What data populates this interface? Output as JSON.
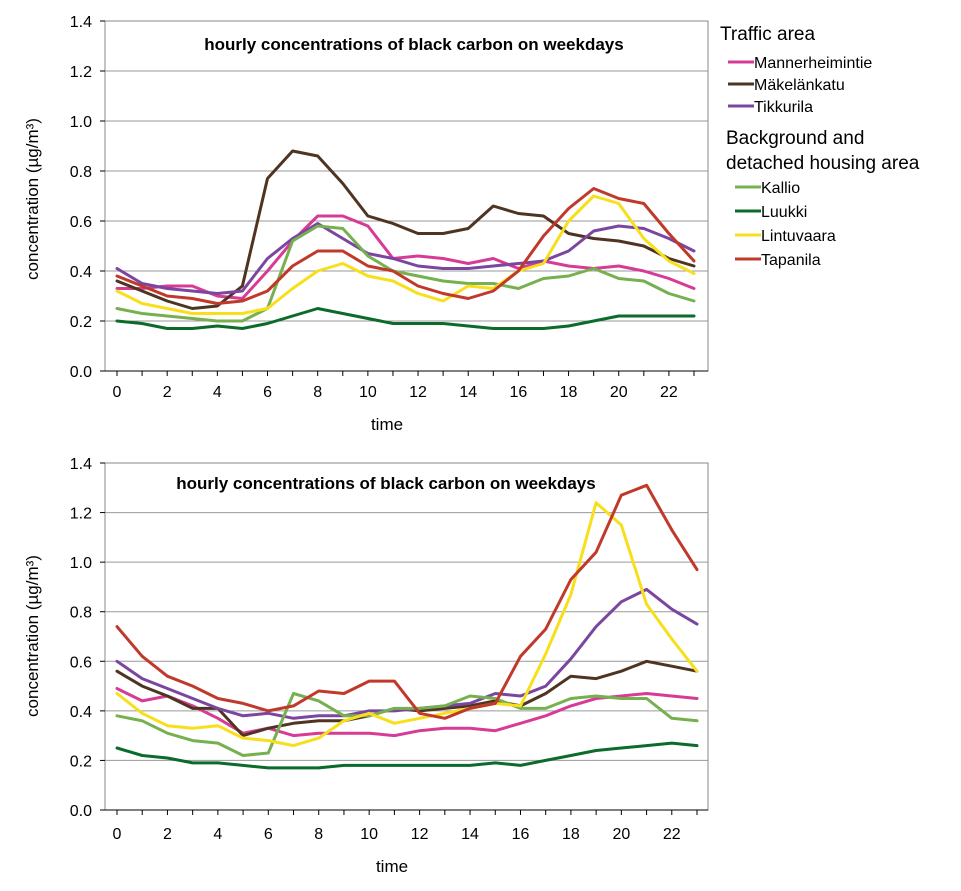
{
  "legend": {
    "group1_title": "Traffic area",
    "group2_title_line1": "Background and",
    "group2_title_line2": "detached housing area"
  },
  "series_meta": [
    {
      "name": "Mannerheimintie",
      "color": "#d63c96",
      "group": 1
    },
    {
      "name": "Mäkelänkatu",
      "color": "#4f3422",
      "group": 1
    },
    {
      "name": "Tikkurila",
      "color": "#7a46a0",
      "group": 1
    },
    {
      "name": "Kallio",
      "color": "#77b04f",
      "group": 2
    },
    {
      "name": "Luukki",
      "color": "#0a6b2a",
      "group": 2
    },
    {
      "name": "Lintuvaara",
      "color": "#f7df1c",
      "group": 2
    },
    {
      "name": "Tapanila",
      "color": "#c0392b",
      "group": 2
    }
  ],
  "chart_data": [
    {
      "type": "line",
      "title": "hourly concentrations of black carbon on weekdays",
      "xlabel": "time",
      "ylabel": "concentration (µg/m³)",
      "ylim": [
        0,
        1.4
      ],
      "yticks": [
        "0.0",
        "0.2",
        "0.4",
        "0.6",
        "0.8",
        "1.0",
        "1.2",
        "1.4"
      ],
      "xticks": [
        "0",
        "2",
        "4",
        "6",
        "8",
        "10",
        "12",
        "14",
        "16",
        "18",
        "20",
        "22"
      ],
      "x": [
        0,
        1,
        2,
        3,
        4,
        5,
        6,
        7,
        8,
        9,
        10,
        11,
        12,
        13,
        14,
        15,
        16,
        17,
        18,
        19,
        20,
        21,
        22,
        23
      ],
      "grid": true,
      "series": [
        {
          "name": "Mannerheimintie",
          "values": [
            0.33,
            0.33,
            0.34,
            0.34,
            0.3,
            0.29,
            0.4,
            0.52,
            0.62,
            0.62,
            0.58,
            0.45,
            0.46,
            0.45,
            0.43,
            0.45,
            0.41,
            0.44,
            0.42,
            0.41,
            0.42,
            0.4,
            0.37,
            0.33
          ]
        },
        {
          "name": "Mäkelänkatu",
          "values": [
            0.36,
            0.32,
            0.28,
            0.25,
            0.26,
            0.34,
            0.77,
            0.88,
            0.86,
            0.75,
            0.62,
            0.59,
            0.55,
            0.55,
            0.57,
            0.66,
            0.63,
            0.62,
            0.55,
            0.53,
            0.52,
            0.5,
            0.45,
            0.42
          ]
        },
        {
          "name": "Tikkurila",
          "values": [
            0.41,
            0.35,
            0.33,
            0.32,
            0.31,
            0.32,
            0.45,
            0.53,
            0.59,
            0.53,
            0.47,
            0.45,
            0.42,
            0.41,
            0.41,
            0.42,
            0.43,
            0.44,
            0.48,
            0.56,
            0.58,
            0.57,
            0.53,
            0.48
          ]
        },
        {
          "name": "Kallio",
          "values": [
            0.25,
            0.23,
            0.22,
            0.21,
            0.2,
            0.2,
            0.25,
            0.52,
            0.58,
            0.57,
            0.46,
            0.4,
            0.38,
            0.36,
            0.35,
            0.35,
            0.33,
            0.37,
            0.38,
            0.41,
            0.37,
            0.36,
            0.31,
            0.28
          ]
        },
        {
          "name": "Luukki",
          "values": [
            0.2,
            0.19,
            0.17,
            0.17,
            0.18,
            0.17,
            0.19,
            0.22,
            0.25,
            0.23,
            0.21,
            0.19,
            0.19,
            0.19,
            0.18,
            0.17,
            0.17,
            0.17,
            0.18,
            0.2,
            0.22,
            0.22,
            0.22,
            0.22
          ]
        },
        {
          "name": "Lintuvaara",
          "values": [
            0.32,
            0.27,
            0.25,
            0.23,
            0.23,
            0.23,
            0.25,
            0.33,
            0.4,
            0.43,
            0.38,
            0.36,
            0.31,
            0.28,
            0.34,
            0.33,
            0.4,
            0.43,
            0.6,
            0.7,
            0.67,
            0.53,
            0.44,
            0.39
          ]
        },
        {
          "name": "Tapanila",
          "values": [
            0.38,
            0.34,
            0.3,
            0.29,
            0.27,
            0.28,
            0.32,
            0.42,
            0.48,
            0.48,
            0.42,
            0.4,
            0.34,
            0.31,
            0.29,
            0.32,
            0.4,
            0.54,
            0.65,
            0.73,
            0.69,
            0.67,
            0.55,
            0.44
          ]
        }
      ]
    },
    {
      "type": "line",
      "title": "hourly concentrations of black carbon on weekdays",
      "xlabel": "time",
      "ylabel": "concentration (µg/m³)",
      "ylim": [
        0,
        1.4
      ],
      "yticks": [
        "0.0",
        "0.2",
        "0.4",
        "0.6",
        "0.8",
        "1.0",
        "1.2",
        "1.4"
      ],
      "xticks": [
        "0",
        "2",
        "4",
        "6",
        "8",
        "10",
        "12",
        "14",
        "16",
        "18",
        "20",
        "22"
      ],
      "x": [
        0,
        1,
        2,
        3,
        4,
        5,
        6,
        7,
        8,
        9,
        10,
        11,
        12,
        13,
        14,
        15,
        16,
        17,
        18,
        19,
        20,
        21,
        22,
        23
      ],
      "grid": true,
      "series": [
        {
          "name": "Mannerheimintie",
          "values": [
            0.49,
            0.44,
            0.46,
            0.42,
            0.37,
            0.31,
            0.33,
            0.3,
            0.31,
            0.31,
            0.31,
            0.3,
            0.32,
            0.33,
            0.33,
            0.32,
            0.35,
            0.38,
            0.42,
            0.45,
            0.46,
            0.47,
            0.46,
            0.45
          ]
        },
        {
          "name": "Mäkelänkatu",
          "values": [
            0.56,
            0.5,
            0.46,
            0.41,
            0.41,
            0.3,
            0.33,
            0.35,
            0.36,
            0.36,
            0.38,
            0.41,
            0.4,
            0.41,
            0.42,
            0.44,
            0.42,
            0.47,
            0.54,
            0.53,
            0.56,
            0.6,
            0.58,
            0.56
          ]
        },
        {
          "name": "Tikkurila",
          "values": [
            0.6,
            0.53,
            0.49,
            0.45,
            0.41,
            0.38,
            0.39,
            0.37,
            0.38,
            0.38,
            0.4,
            0.4,
            0.41,
            0.42,
            0.43,
            0.47,
            0.46,
            0.5,
            0.61,
            0.74,
            0.84,
            0.89,
            0.81,
            0.75
          ]
        },
        {
          "name": "Kallio",
          "values": [
            0.38,
            0.36,
            0.31,
            0.28,
            0.27,
            0.22,
            0.23,
            0.47,
            0.44,
            0.38,
            0.38,
            0.41,
            0.41,
            0.42,
            0.46,
            0.45,
            0.41,
            0.41,
            0.45,
            0.46,
            0.45,
            0.45,
            0.37,
            0.36
          ]
        },
        {
          "name": "Luukki",
          "values": [
            0.25,
            0.22,
            0.21,
            0.19,
            0.19,
            0.18,
            0.17,
            0.17,
            0.17,
            0.18,
            0.18,
            0.18,
            0.18,
            0.18,
            0.18,
            0.19,
            0.18,
            0.2,
            0.22,
            0.24,
            0.25,
            0.26,
            0.27,
            0.26
          ]
        },
        {
          "name": "Lintuvaara",
          "values": [
            0.47,
            0.39,
            0.34,
            0.33,
            0.34,
            0.29,
            0.28,
            0.26,
            0.29,
            0.36,
            0.39,
            0.35,
            0.37,
            0.39,
            0.41,
            0.43,
            0.42,
            0.63,
            0.87,
            1.24,
            1.15,
            0.83,
            0.69,
            0.56
          ]
        },
        {
          "name": "Tapanila",
          "values": [
            0.74,
            0.62,
            0.54,
            0.5,
            0.45,
            0.43,
            0.4,
            0.42,
            0.48,
            0.47,
            0.52,
            0.52,
            0.39,
            0.37,
            0.41,
            0.43,
            0.62,
            0.73,
            0.93,
            1.04,
            1.27,
            1.31,
            1.13,
            0.97
          ]
        }
      ]
    }
  ]
}
